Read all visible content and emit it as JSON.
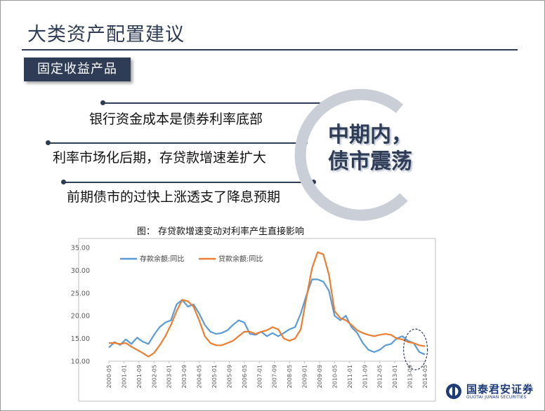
{
  "slide": {
    "title": "大类资产配置建议",
    "section": "固定收益产品",
    "points": [
      "银行资金成本是债券利率底部",
      "利率市场化后期，存贷款增速差扩大",
      "前期债市的过快上涨透支了降息预期"
    ],
    "highlight_line1": "中期内，",
    "highlight_line2": "债市震荡",
    "caption": "图：  存贷款增速变动对利率产生直接影响"
  },
  "logo": {
    "name_cn": "国泰君安证券",
    "name_en": "GUOTAI JUNAN SECURITIES"
  },
  "colors": {
    "navy": "#2f3c56",
    "arc_gray": "#c9ced7",
    "deposit": "#5b9bd5",
    "loan": "#ed7d31",
    "logo_blue": "#1f3c78"
  },
  "chart_data": {
    "type": "line",
    "ylim": [
      10,
      35
    ],
    "yticks": [
      "10.00",
      "15.00",
      "20.00",
      "25.00",
      "30.00",
      "35.00"
    ],
    "xtick_labels": [
      "2000-05",
      "2001-01",
      "2001-09",
      "2002-05",
      "2003-01",
      "2003-09",
      "2004-05",
      "2005-01",
      "2005-09",
      "2006-05",
      "2007-01",
      "2007-09",
      "2008-05",
      "2009-01",
      "2009-09",
      "2010-05",
      "2011-01",
      "2011-09",
      "2012-05",
      "2013-01",
      "2013-09",
      "2014-05"
    ],
    "x_range": [
      "2000-05",
      "2014-05"
    ],
    "legend_position": "top-left",
    "grid": false,
    "series": [
      {
        "name": "存款余额:同比",
        "color": "#5b9bd5",
        "points": [
          [
            "2000-05",
            13.0
          ],
          [
            "2000-08",
            14.2
          ],
          [
            "2000-11",
            13.6
          ],
          [
            "2001-02",
            14.8
          ],
          [
            "2001-05",
            13.8
          ],
          [
            "2001-08",
            15.2
          ],
          [
            "2001-11",
            14.3
          ],
          [
            "2002-02",
            13.8
          ],
          [
            "2002-05",
            15.8
          ],
          [
            "2002-08",
            17.5
          ],
          [
            "2002-11",
            18.5
          ],
          [
            "2003-02",
            19.0
          ],
          [
            "2003-05",
            22.5
          ],
          [
            "2003-08",
            23.5
          ],
          [
            "2003-11",
            22.0
          ],
          [
            "2004-02",
            22.5
          ],
          [
            "2004-05",
            20.5
          ],
          [
            "2004-08",
            18.0
          ],
          [
            "2004-11",
            16.5
          ],
          [
            "2005-02",
            16.0
          ],
          [
            "2005-05",
            16.2
          ],
          [
            "2005-08",
            16.8
          ],
          [
            "2005-11",
            18.0
          ],
          [
            "2006-02",
            19.0
          ],
          [
            "2006-05",
            18.5
          ],
          [
            "2006-08",
            16.0
          ],
          [
            "2006-11",
            15.8
          ],
          [
            "2007-02",
            16.5
          ],
          [
            "2007-05",
            15.5
          ],
          [
            "2007-08",
            16.2
          ],
          [
            "2007-11",
            15.5
          ],
          [
            "2008-02",
            16.2
          ],
          [
            "2008-05",
            17.0
          ],
          [
            "2008-08",
            17.5
          ],
          [
            "2008-11",
            20.5
          ],
          [
            "2009-02",
            24.5
          ],
          [
            "2009-05",
            28.0
          ],
          [
            "2009-08",
            28.0
          ],
          [
            "2009-11",
            27.5
          ],
          [
            "2010-02",
            25.5
          ],
          [
            "2010-05",
            20.0
          ],
          [
            "2010-08",
            19.0
          ],
          [
            "2010-11",
            20.0
          ],
          [
            "2011-02",
            17.5
          ],
          [
            "2011-05",
            16.2
          ],
          [
            "2011-08",
            14.0
          ],
          [
            "2011-11",
            12.5
          ],
          [
            "2012-02",
            12.0
          ],
          [
            "2012-05",
            12.5
          ],
          [
            "2012-08",
            13.5
          ],
          [
            "2012-11",
            13.8
          ],
          [
            "2013-02",
            15.0
          ],
          [
            "2013-05",
            15.5
          ],
          [
            "2013-08",
            14.5
          ],
          [
            "2013-11",
            14.0
          ],
          [
            "2014-02",
            12.0
          ],
          [
            "2014-05",
            11.5
          ]
        ]
      },
      {
        "name": "贷款余额:同比",
        "color": "#ed7d31",
        "points": [
          [
            "2000-05",
            14.0
          ],
          [
            "2000-08",
            14.0
          ],
          [
            "2000-11",
            13.8
          ],
          [
            "2001-02",
            14.0
          ],
          [
            "2001-05",
            13.2
          ],
          [
            "2001-08",
            12.5
          ],
          [
            "2001-11",
            11.8
          ],
          [
            "2002-02",
            11.0
          ],
          [
            "2002-05",
            11.8
          ],
          [
            "2002-08",
            13.5
          ],
          [
            "2002-11",
            15.5
          ],
          [
            "2003-02",
            18.0
          ],
          [
            "2003-05",
            21.0
          ],
          [
            "2003-08",
            23.5
          ],
          [
            "2003-11",
            23.2
          ],
          [
            "2004-02",
            22.0
          ],
          [
            "2004-05",
            19.0
          ],
          [
            "2004-08",
            15.5
          ],
          [
            "2004-11",
            14.0
          ],
          [
            "2005-02",
            13.5
          ],
          [
            "2005-05",
            13.5
          ],
          [
            "2005-08",
            14.0
          ],
          [
            "2005-11",
            14.5
          ],
          [
            "2006-02",
            15.5
          ],
          [
            "2006-05",
            16.5
          ],
          [
            "2006-08",
            16.5
          ],
          [
            "2006-11",
            16.0
          ],
          [
            "2007-02",
            16.5
          ],
          [
            "2007-05",
            16.8
          ],
          [
            "2007-08",
            17.5
          ],
          [
            "2007-11",
            17.0
          ],
          [
            "2008-02",
            15.0
          ],
          [
            "2008-05",
            14.5
          ],
          [
            "2008-08",
            15.0
          ],
          [
            "2008-11",
            17.0
          ],
          [
            "2009-02",
            24.0
          ],
          [
            "2009-05",
            30.5
          ],
          [
            "2009-08",
            34.0
          ],
          [
            "2009-11",
            33.5
          ],
          [
            "2010-02",
            29.0
          ],
          [
            "2010-05",
            21.0
          ],
          [
            "2010-08",
            19.5
          ],
          [
            "2010-11",
            19.0
          ],
          [
            "2011-02",
            18.0
          ],
          [
            "2011-05",
            16.8
          ],
          [
            "2011-08",
            16.2
          ],
          [
            "2011-11",
            15.8
          ],
          [
            "2012-02",
            15.5
          ],
          [
            "2012-05",
            15.8
          ],
          [
            "2012-08",
            16.0
          ],
          [
            "2012-11",
            15.8
          ],
          [
            "2013-02",
            15.0
          ],
          [
            "2013-05",
            14.8
          ],
          [
            "2013-08",
            14.2
          ],
          [
            "2013-11",
            14.0
          ],
          [
            "2014-02",
            13.5
          ],
          [
            "2014-05",
            13.3
          ]
        ]
      }
    ]
  }
}
